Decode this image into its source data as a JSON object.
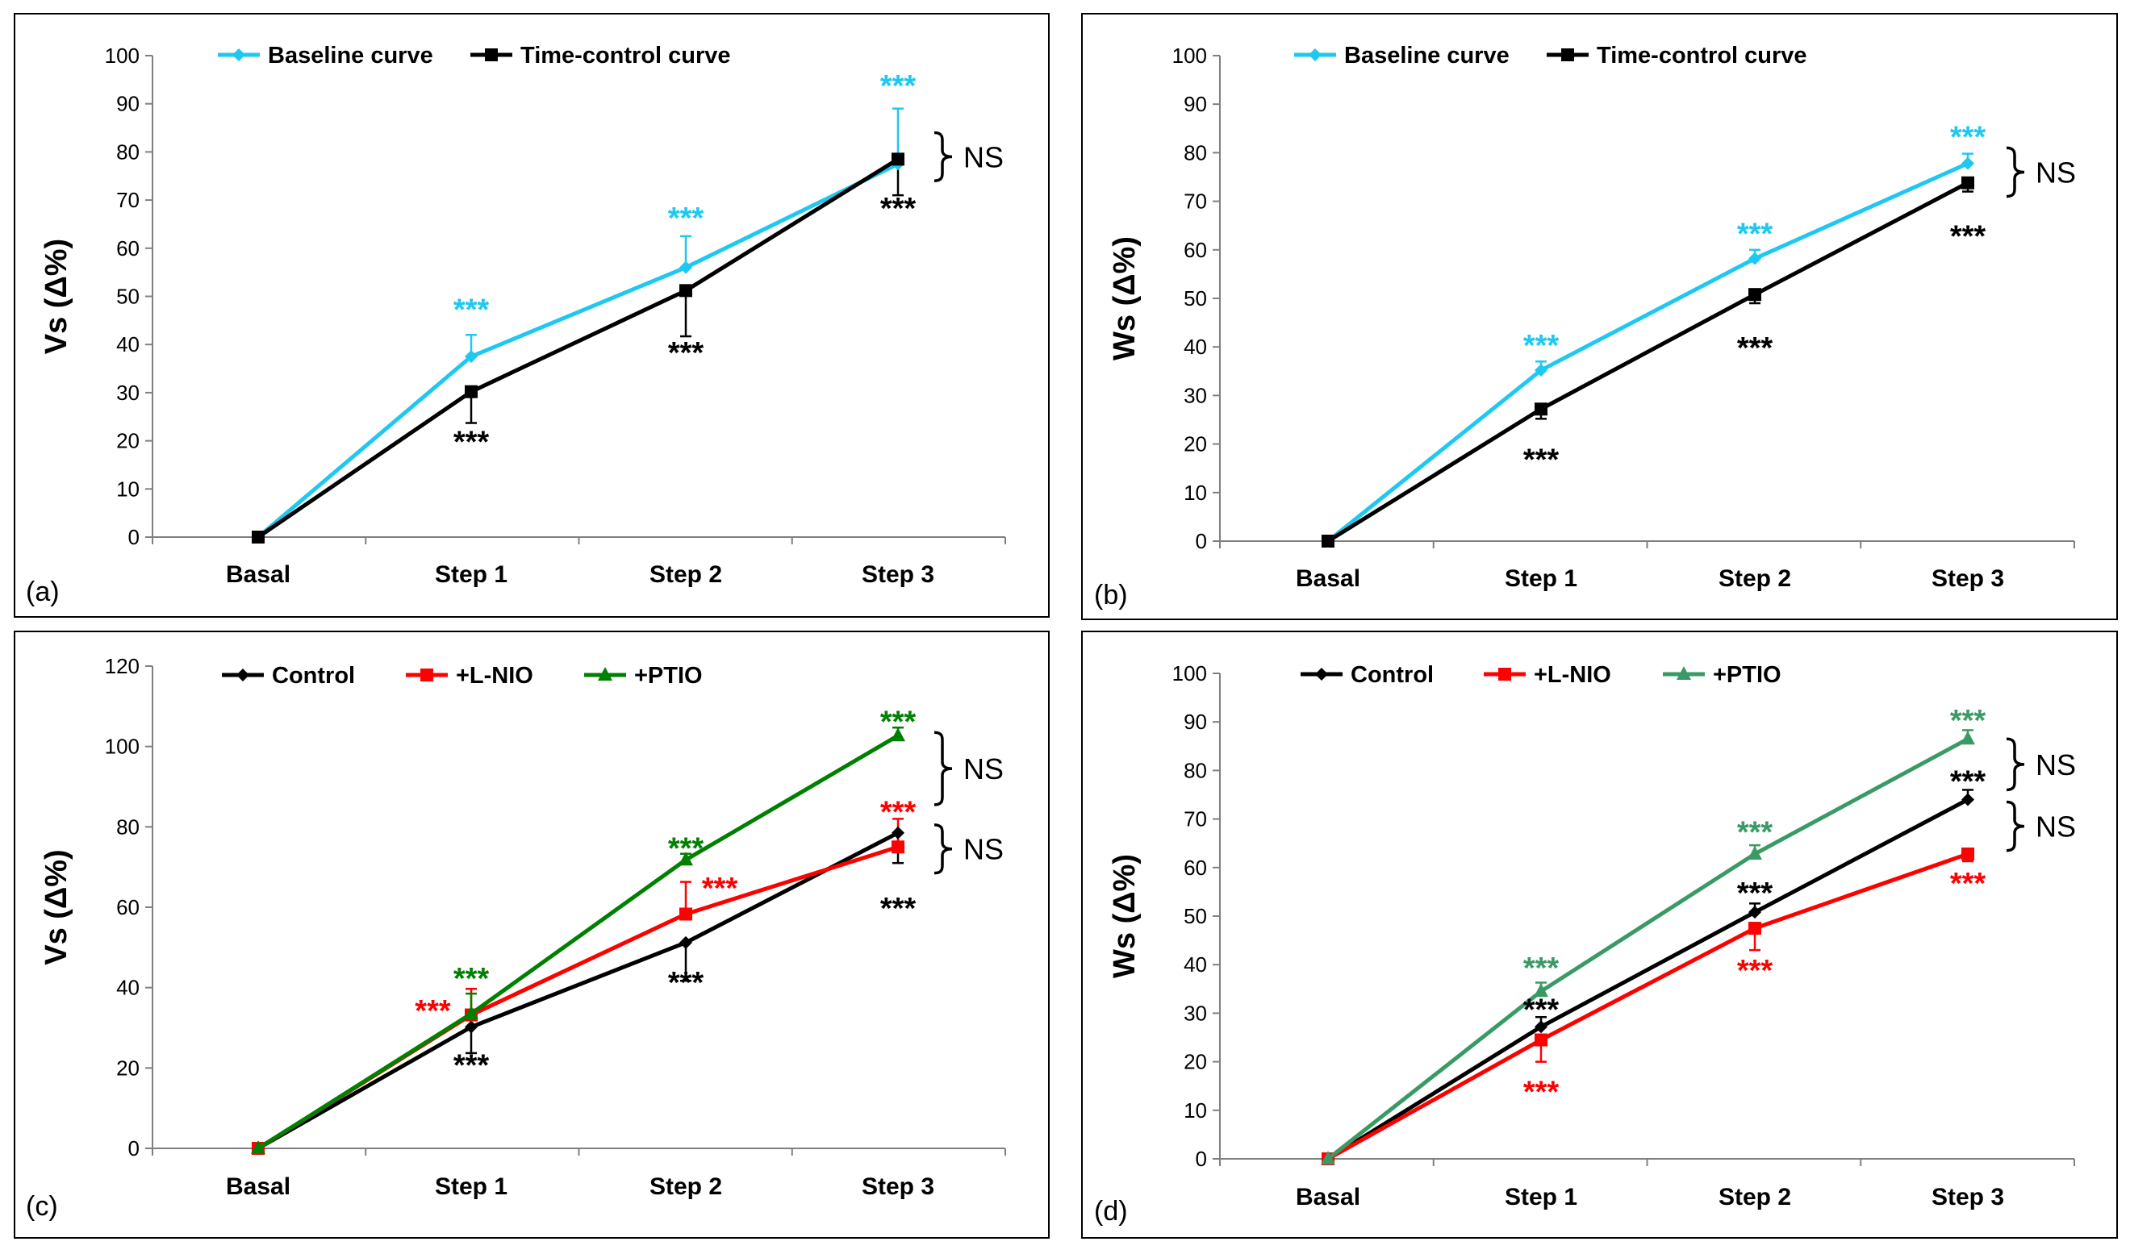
{
  "chart_data": [
    {
      "panel_label": "(a)",
      "type": "line",
      "ylabel": "Vs (Δ%)",
      "ylim": [
        0,
        100
      ],
      "yticks": [
        "0",
        "10",
        "20",
        "30",
        "40",
        "50",
        "60",
        "70",
        "80",
        "90",
        "100"
      ],
      "categories": [
        "Basal",
        "Step 1",
        "Step 2",
        "Step 3"
      ],
      "legend_position": "top-left",
      "series": [
        {
          "name": "Baseline curve",
          "color": "#1EC8F0",
          "marker": "diamond",
          "values": [
            0,
            37.5,
            56,
            77.5
          ],
          "err": [
            0,
            4.5,
            6.5,
            11.5
          ],
          "err_dir": "up"
        },
        {
          "name": "Time-control curve",
          "color": "#000000",
          "marker": "square",
          "values": [
            0,
            30.2,
            51.2,
            78.5
          ],
          "err": [
            0,
            6.5,
            9.5,
            7.5
          ],
          "err_dir": "down"
        }
      ],
      "annotations": [
        {
          "text": "***",
          "color": "#1EC8F0",
          "cat": 1,
          "y": 47.5
        },
        {
          "text": "***",
          "color": "#000000",
          "cat": 1,
          "y": 20
        },
        {
          "text": "***",
          "color": "#1EC8F0",
          "cat": 2,
          "y": 66.5
        },
        {
          "text": "***",
          "color": "#000000",
          "cat": 2,
          "y": 38.5
        },
        {
          "text": "***",
          "color": "#1EC8F0",
          "cat": 3,
          "y": 94
        },
        {
          "text": "***",
          "color": "#000000",
          "cat": 3,
          "y": 68.5
        }
      ],
      "brackets": [
        {
          "text": "NS",
          "y_top": 84,
          "y_bottom": 74
        }
      ]
    },
    {
      "panel_label": "(b)",
      "type": "line",
      "ylabel": "Ws (Δ%)",
      "ylim": [
        0,
        100
      ],
      "yticks": [
        "0",
        "10",
        "20",
        "30",
        "40",
        "50",
        "60",
        "70",
        "80",
        "90",
        "100"
      ],
      "categories": [
        "Basal",
        "Step 1",
        "Step 2",
        "Step 3"
      ],
      "legend_position": "top-left",
      "series": [
        {
          "name": "Baseline curve",
          "color": "#1EC8F0",
          "marker": "diamond",
          "values": [
            0,
            35.2,
            58.2,
            77.8
          ],
          "err": [
            0,
            1.8,
            1.8,
            2
          ],
          "err_dir": "up"
        },
        {
          "name": "Time-control curve",
          "color": "#000000",
          "marker": "square",
          "values": [
            0,
            27.2,
            50.8,
            73.8
          ],
          "err": [
            0,
            2,
            1.8,
            1.8
          ],
          "err_dir": "down"
        }
      ],
      "annotations": [
        {
          "text": "***",
          "color": "#1EC8F0",
          "cat": 1,
          "y": 40.5
        },
        {
          "text": "***",
          "color": "#000000",
          "cat": 1,
          "y": 17
        },
        {
          "text": "***",
          "color": "#1EC8F0",
          "cat": 2,
          "y": 63.5
        },
        {
          "text": "***",
          "color": "#000000",
          "cat": 2,
          "y": 40
        },
        {
          "text": "***",
          "color": "#1EC8F0",
          "cat": 3,
          "y": 83.5
        },
        {
          "text": "***",
          "color": "#000000",
          "cat": 3,
          "y": 63
        }
      ],
      "brackets": [
        {
          "text": "NS",
          "y_top": 81,
          "y_bottom": 71
        }
      ]
    },
    {
      "panel_label": "(c)",
      "type": "line",
      "ylabel": "Vs (Δ%)",
      "ylim": [
        0,
        120
      ],
      "yticks": [
        "0",
        "20",
        "40",
        "60",
        "80",
        "100",
        "120"
      ],
      "categories": [
        "Basal",
        "Step 1",
        "Step 2",
        "Step 3"
      ],
      "legend_position": "top-left",
      "series": [
        {
          "name": "Control",
          "color": "#000000",
          "marker": "diamond",
          "values": [
            0,
            30.2,
            51.2,
            78.5
          ],
          "err": [
            0,
            6.5,
            9.5,
            7.5
          ],
          "err_dir": "down"
        },
        {
          "name": "+L-NIO",
          "color": "#FF0000",
          "marker": "square",
          "values": [
            0,
            33.2,
            58.3,
            75
          ],
          "err": [
            0,
            6.5,
            8,
            7
          ],
          "err_dir": "up"
        },
        {
          "name": "+PTIO",
          "color": "#008000",
          "marker": "triangle",
          "values": [
            0,
            33.5,
            71.8,
            102.7
          ],
          "err": [
            0,
            5,
            1.5,
            2
          ],
          "err_dir": "up"
        }
      ],
      "annotations": [
        {
          "text": "***",
          "color": "#FF0000",
          "cat": 0.82,
          "y": 34.5
        },
        {
          "text": "***",
          "color": "#008000",
          "cat": 1,
          "y": 42.5
        },
        {
          "text": "***",
          "color": "#000000",
          "cat": 1,
          "y": 21
        },
        {
          "text": "***",
          "color": "#008000",
          "cat": 2,
          "y": 75
        },
        {
          "text": "***",
          "color": "#FF0000",
          "cat": 2.16,
          "y": 65
        },
        {
          "text": "***",
          "color": "#000000",
          "cat": 2,
          "y": 41.5
        },
        {
          "text": "***",
          "color": "#008000",
          "cat": 3,
          "y": 106.5
        },
        {
          "text": "***",
          "color": "#FF0000",
          "cat": 3,
          "y": 84
        },
        {
          "text": "***",
          "color": "#000000",
          "cat": 3,
          "y": 60
        }
      ],
      "brackets": [
        {
          "text": "NS",
          "y_top": 103.5,
          "y_bottom": 85.5
        },
        {
          "text": "NS",
          "y_top": 80.5,
          "y_bottom": 68.5
        }
      ]
    },
    {
      "panel_label": "(d)",
      "type": "line",
      "ylabel": "Ws (Δ%)",
      "ylim": [
        0,
        100
      ],
      "yticks": [
        "0",
        "10",
        "20",
        "30",
        "40",
        "50",
        "60",
        "70",
        "80",
        "90",
        "100"
      ],
      "categories": [
        "Basal",
        "Step 1",
        "Step 2",
        "Step 3"
      ],
      "legend_position": "top-left",
      "series": [
        {
          "name": "Control",
          "color": "#000000",
          "marker": "diamond",
          "values": [
            0,
            27.2,
            50.8,
            74
          ],
          "err": [
            0,
            2,
            1.8,
            2
          ],
          "err_dir": "up"
        },
        {
          "name": "+L-NIO",
          "color": "#FF0000",
          "marker": "square",
          "values": [
            0,
            24.5,
            47.5,
            62.8
          ],
          "err": [
            0,
            4.5,
            4.5,
            1.5
          ],
          "err_dir": "down"
        },
        {
          "name": "+PTIO",
          "color": "#3A9A65",
          "marker": "triangle",
          "values": [
            0,
            34.5,
            62.8,
            86.5
          ],
          "err": [
            0,
            1.8,
            1.8,
            1.8
          ],
          "err_dir": "up"
        }
      ],
      "annotations": [
        {
          "text": "***",
          "color": "#3A9A65",
          "cat": 1,
          "y": 39.5
        },
        {
          "text": "***",
          "color": "#000000",
          "cat": 1,
          "y": 31
        },
        {
          "text": "***",
          "color": "#FF0000",
          "cat": 1,
          "y": 14
        },
        {
          "text": "***",
          "color": "#3A9A65",
          "cat": 2,
          "y": 67.5
        },
        {
          "text": "***",
          "color": "#000000",
          "cat": 2,
          "y": 55
        },
        {
          "text": "***",
          "color": "#FF0000",
          "cat": 2,
          "y": 39
        },
        {
          "text": "***",
          "color": "#3A9A65",
          "cat": 3,
          "y": 90.5
        },
        {
          "text": "***",
          "color": "#000000",
          "cat": 3,
          "y": 78
        },
        {
          "text": "***",
          "color": "#FF0000",
          "cat": 3,
          "y": 57
        }
      ],
      "brackets": [
        {
          "text": "NS",
          "y_top": 86.5,
          "y_bottom": 76
        },
        {
          "text": "NS",
          "y_top": 73.5,
          "y_bottom": 63.5
        }
      ]
    }
  ]
}
